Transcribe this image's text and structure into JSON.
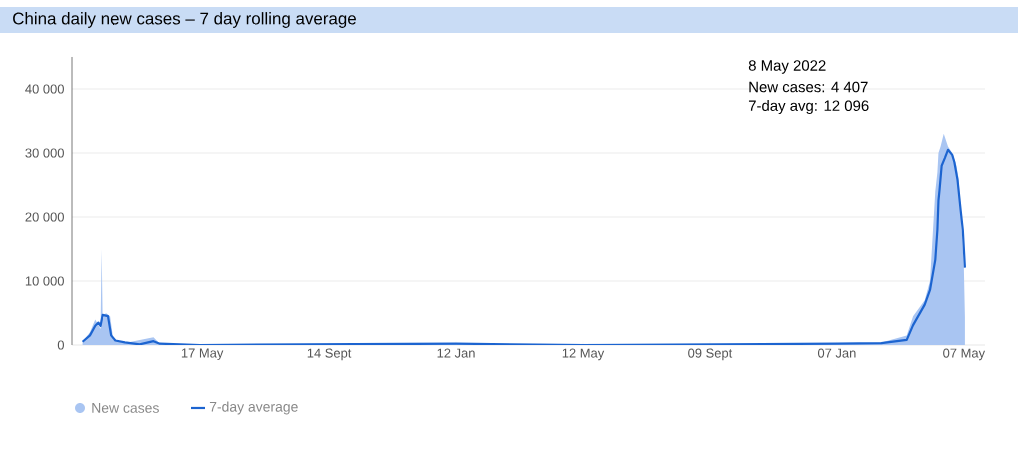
{
  "chart_data": {
    "type": "line",
    "title": "China daily new cases – 7 day rolling average",
    "annotations": [
      "8 May 2022",
      "New cases:  4 407",
      "7-day avg: 12 096"
    ],
    "xlim": [
      "2020-01-15",
      "2022-05-27"
    ],
    "xticks": [
      {
        "value": "2020-05-17",
        "label": "17 May"
      },
      {
        "value": "2020-09-14",
        "label": "14 Sept"
      },
      {
        "value": "2021-01-12",
        "label": "12 Jan"
      },
      {
        "value": "2021-05-12",
        "label": "12 May"
      },
      {
        "value": "2021-09-09",
        "label": "09 Sept"
      },
      {
        "value": "2022-01-07",
        "label": "07 Jan"
      },
      {
        "value": "2022-05-07",
        "label": "07 May"
      }
    ],
    "ylim": [
      0,
      45000
    ],
    "yticks": [
      0,
      {
        "value": 10000,
        "label": "10 000"
      },
      {
        "value": 20000,
        "label": "20 000"
      },
      {
        "value": 30000,
        "label": "30 000"
      },
      {
        "value": 40000,
        "label": "40 000"
      }
    ],
    "grid": "y",
    "legend": "bottom left",
    "series": [
      {
        "name": "New cases",
        "type": "area",
        "color": "#a9c5f2",
        "x": [
          "2020-01-25",
          "2020-02-01",
          "2020-02-06",
          "2020-02-11",
          "2020-02-12",
          "2020-02-13",
          "2020-02-16",
          "2020-02-20",
          "2020-02-23",
          "2020-03-05",
          "2020-04-01",
          "2020-04-07",
          "2020-06-01",
          "2021-01-12",
          "2021-09-09",
          "2022-01-07",
          "2022-02-18",
          "2022-03-14",
          "2022-03-20",
          "2022-03-31",
          "2022-04-05",
          "2022-04-10",
          "2022-04-12",
          "2022-04-13",
          "2022-04-14",
          "2022-04-15",
          "2022-04-18",
          "2022-04-22",
          "2022-04-26",
          "2022-04-30",
          "2022-05-01",
          "2022-05-02",
          "2022-05-05",
          "2022-05-07",
          "2022-05-08"
        ],
        "values": [
          500,
          2000,
          4000,
          2500,
          15000,
          4000,
          5000,
          4500,
          800,
          300,
          1200,
          200,
          100,
          200,
          100,
          200,
          400,
          1500,
          4500,
          7000,
          10000,
          24000,
          27000,
          30000,
          null,
          31000,
          33000,
          31000,
          30000,
          28000,
          null,
          26000,
          18000,
          12000,
          4407
        ]
      },
      {
        "name": "7-day average",
        "color": "#1c64d0",
        "x": [
          "2020-01-25",
          "2020-02-01",
          "2020-02-06",
          "2020-02-09",
          "2020-02-11",
          "2020-02-13",
          "2020-02-18",
          "2020-02-21",
          "2020-02-25",
          "2020-03-05",
          "2020-03-19",
          "2020-04-01",
          "2020-04-07",
          "2020-05-15",
          "2021-01-12",
          "2021-05-12",
          "2021-09-09",
          "2022-01-07",
          "2022-02-18",
          "2022-03-14",
          "2022-03-20",
          "2022-03-31",
          "2022-04-05",
          "2022-04-10",
          "2022-04-12",
          "2022-04-13",
          "2022-04-14",
          "2022-04-16",
          "2022-04-19",
          "2022-04-22",
          "2022-04-26",
          "2022-04-28",
          "2022-05-01",
          "2022-05-04",
          "2022-05-06",
          "2022-05-08"
        ],
        "values": [
          500,
          1500,
          3000,
          3500,
          3000,
          4700,
          4500,
          1500,
          700,
          400,
          100,
          600,
          200,
          0,
          200,
          0,
          100,
          200,
          300,
          800,
          3100,
          6300,
          8600,
          13300,
          18000,
          22600,
          24200,
          28000,
          29200,
          30500,
          29700,
          28600,
          25800,
          21000,
          18000,
          12096
        ]
      }
    ]
  }
}
